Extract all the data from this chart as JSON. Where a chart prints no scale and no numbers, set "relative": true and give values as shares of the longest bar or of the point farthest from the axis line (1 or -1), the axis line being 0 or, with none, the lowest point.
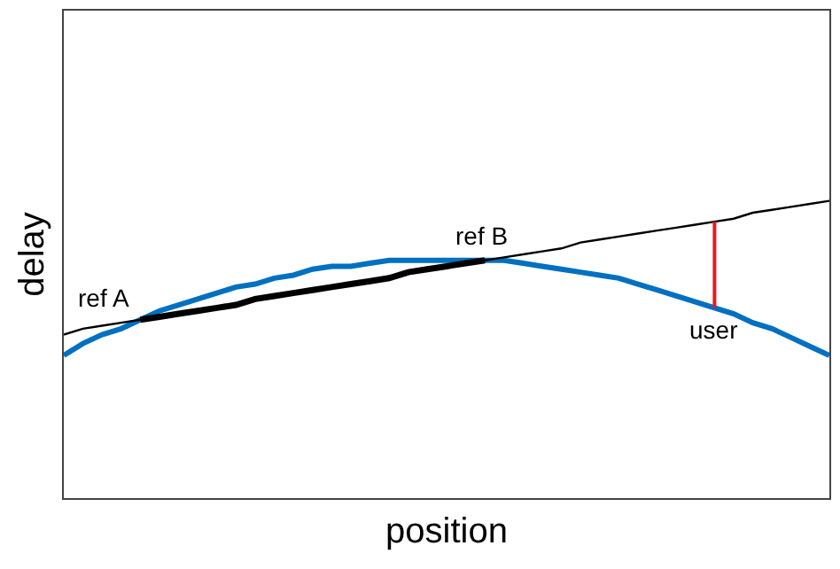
{
  "chart_data": {
    "type": "line",
    "relative": true,
    "xlabel": "position",
    "ylabel": "delay",
    "marker": "none",
    "line_style": "solid",
    "categories": [
      null,
      null,
      null,
      null,
      null,
      null,
      null,
      null,
      null,
      null,
      null,
      null,
      null,
      null,
      null,
      null,
      null,
      null,
      null,
      null,
      null,
      null,
      null,
      null,
      null,
      null,
      null,
      null,
      null,
      null,
      null,
      null,
      null,
      null,
      null,
      null,
      null,
      null,
      null,
      null,
      null
    ],
    "series": [
      {
        "color": "#0070c0",
        "values": [
          0.48,
          0.52,
          0.55,
          0.57,
          0.6,
          0.63,
          0.65,
          0.67,
          0.69,
          0.71,
          0.72,
          0.74,
          0.75,
          0.77,
          0.78,
          0.78,
          0.79,
          0.8,
          0.8,
          0.8,
          0.8,
          0.8,
          0.8,
          0.8,
          0.79,
          0.78,
          0.77,
          0.76,
          0.75,
          0.74,
          0.72,
          0.7,
          0.68,
          0.66,
          0.64,
          0.62,
          0.59,
          0.57,
          0.54,
          0.51,
          0.48
        ]
      },
      {
        "color": "#000000",
        "values": [
          0.55,
          0.57,
          0.58,
          0.59,
          0.6,
          0.61,
          0.62,
          0.63,
          0.64,
          0.65,
          0.67,
          0.68,
          0.69,
          0.7,
          0.71,
          0.72,
          0.73,
          0.74,
          0.76,
          0.77,
          0.78,
          0.79,
          0.8,
          0.81,
          0.82,
          0.83,
          0.84,
          0.86,
          0.87,
          0.88,
          0.89,
          0.9,
          0.91,
          0.92,
          0.93,
          0.94,
          0.96,
          0.97,
          0.98,
          0.99,
          1.0
        ]
      },
      {
        "color": "#000000",
        "values": [
          null,
          null,
          null,
          null,
          0.6,
          0.61,
          0.62,
          0.63,
          0.64,
          0.65,
          0.67,
          0.68,
          0.69,
          0.7,
          0.71,
          0.72,
          0.73,
          0.74,
          0.76,
          0.77,
          0.78,
          0.79,
          0.8,
          null,
          null,
          null,
          null,
          null,
          null,
          null,
          null,
          null,
          null,
          null,
          null,
          null,
          null,
          null,
          null,
          null,
          null
        ]
      }
    ],
    "annotations": [
      "ref A",
      "ref B",
      {
        "text": "user",
        "y": 0.64
      }
    ]
  }
}
